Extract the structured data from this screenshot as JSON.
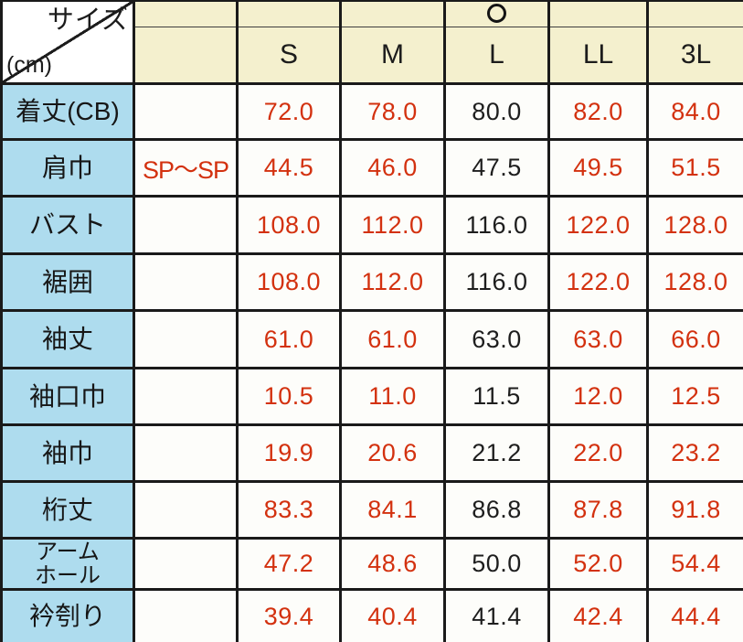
{
  "table": {
    "corner": {
      "size_label": "サイズ",
      "unit_label": "(cm)"
    },
    "circle_mark": "○",
    "marked_column": "L",
    "columns": [
      "S",
      "M",
      "L",
      "LL",
      "3L"
    ],
    "rows": [
      {
        "label": "着丈(CB)",
        "note": "",
        "values": [
          "72.0",
          "78.0",
          "80.0",
          "82.0",
          "84.0"
        ]
      },
      {
        "label": "肩巾",
        "note": "SP～SP",
        "values": [
          "44.5",
          "46.0",
          "47.5",
          "49.5",
          "51.5"
        ]
      },
      {
        "label": "バスト",
        "note": "",
        "values": [
          "108.0",
          "112.0",
          "116.0",
          "122.0",
          "128.0"
        ]
      },
      {
        "label": "裾囲",
        "note": "",
        "values": [
          "108.0",
          "112.0",
          "116.0",
          "122.0",
          "128.0"
        ]
      },
      {
        "label": "袖丈",
        "note": "",
        "values": [
          "61.0",
          "61.0",
          "63.0",
          "63.0",
          "66.0"
        ]
      },
      {
        "label": "袖口巾",
        "note": "",
        "values": [
          "10.5",
          "11.0",
          "11.5",
          "12.0",
          "12.5"
        ]
      },
      {
        "label": "袖巾",
        "note": "",
        "values": [
          "19.9",
          "20.6",
          "21.2",
          "22.0",
          "23.2"
        ]
      },
      {
        "label": "桁丈",
        "note": "",
        "values": [
          "83.3",
          "84.1",
          "86.8",
          "87.8",
          "91.8"
        ]
      },
      {
        "label": "アーム\nホール",
        "note": "",
        "values": [
          "47.2",
          "48.6",
          "50.0",
          "52.0",
          "54.4"
        ]
      },
      {
        "label": "衿刳り",
        "note": "",
        "values": [
          "39.4",
          "40.4",
          "41.4",
          "42.4",
          "44.4"
        ]
      }
    ]
  },
  "colors": {
    "header_bg": "#f4f0ce",
    "row_label_bg": "#aedcee",
    "value_red": "#d3310f",
    "value_black": "#1e1e1e",
    "border": "#1a1a1a"
  }
}
